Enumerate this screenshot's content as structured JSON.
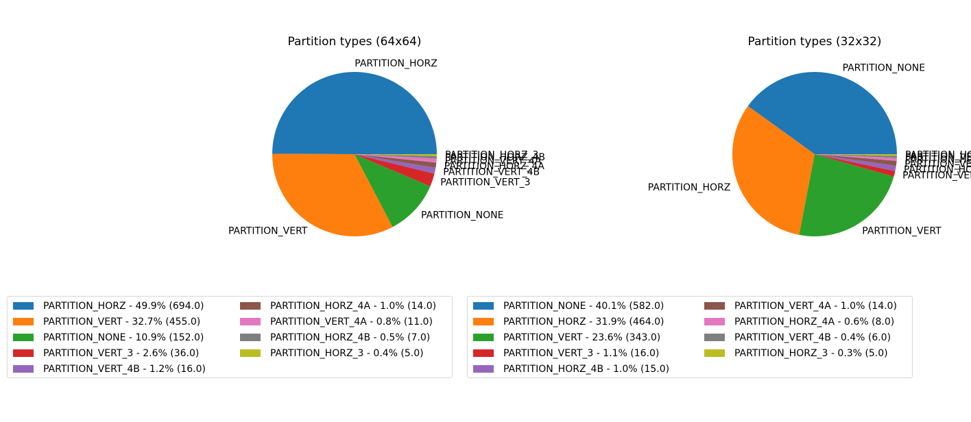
{
  "chart_data": [
    {
      "type": "pie",
      "title": "Partition types (64x64)",
      "labels": [
        "PARTITION_HORZ",
        "PARTITION_VERT",
        "PARTITION_NONE",
        "PARTITION_VERT_3",
        "PARTITION_VERT_4B",
        "PARTITION_HORZ_4A",
        "PARTITION_VERT_4A",
        "PARTITION_HORZ_4B",
        "PARTITION_HORZ_3"
      ],
      "values": [
        694.0,
        455.0,
        152.0,
        36.0,
        16.0,
        14.0,
        11.0,
        7.0,
        5.0
      ],
      "colors": [
        "#1f77b4",
        "#ff7f0e",
        "#2ca02c",
        "#d62728",
        "#9467bd",
        "#8c564b",
        "#e377c2",
        "#7f7f7f",
        "#bcbd22"
      ],
      "legend": [
        "PARTITION_HORZ - 49.9% (694.0)",
        "PARTITION_VERT - 32.7% (455.0)",
        "PARTITION_NONE - 10.9% (152.0)",
        "PARTITION_VERT_3 - 2.6% (36.0)",
        "PARTITION_VERT_4B - 1.2% (16.0)",
        "PARTITION_HORZ_4A - 1.0% (14.0)",
        "PARTITION_VERT_4A - 0.8% (11.0)",
        "PARTITION_HORZ_4B - 0.5% (7.0)",
        "PARTITION_HORZ_3 - 0.4% (5.0)"
      ],
      "legend_placement": "below"
    },
    {
      "type": "pie",
      "title": "Partition types (32x32)",
      "labels": [
        "PARTITION_NONE",
        "PARTITION_HORZ",
        "PARTITION_VERT",
        "PARTITION_VERT_3",
        "PARTITION_HORZ_4B",
        "PARTITION_VERT_4A",
        "PARTITION_HORZ_4A",
        "PARTITION_VERT_4B",
        "PARTITION_HORZ_3"
      ],
      "values": [
        582.0,
        464.0,
        343.0,
        16.0,
        15.0,
        14.0,
        8.0,
        6.0,
        5.0
      ],
      "colors": [
        "#1f77b4",
        "#ff7f0e",
        "#2ca02c",
        "#d62728",
        "#9467bd",
        "#8c564b",
        "#e377c2",
        "#7f7f7f",
        "#bcbd22"
      ],
      "legend": [
        "PARTITION_NONE - 40.1% (582.0)",
        "PARTITION_HORZ - 31.9% (464.0)",
        "PARTITION_VERT - 23.6% (343.0)",
        "PARTITION_VERT_3 - 1.1% (16.0)",
        "PARTITION_HORZ_4B - 1.0% (15.0)",
        "PARTITION_VERT_4A - 1.0% (14.0)",
        "PARTITION_HORZ_4A - 0.6% (8.0)",
        "PARTITION_VERT_4B - 0.4% (6.0)",
        "PARTITION_HORZ_3 - 0.3% (5.0)"
      ],
      "legend_placement": "below"
    }
  ]
}
